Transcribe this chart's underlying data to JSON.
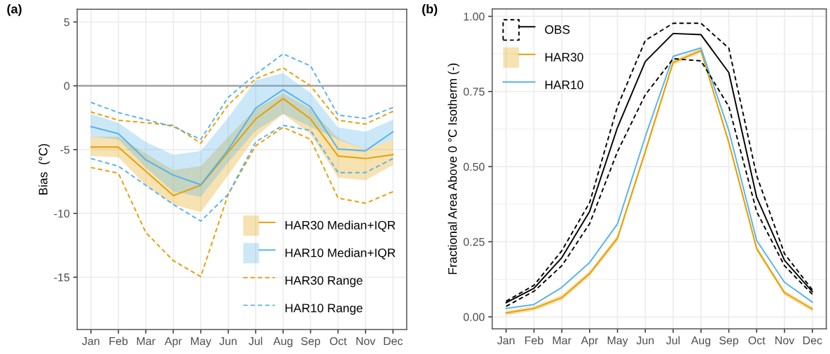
{
  "chart_data": [
    {
      "type": "line",
      "title": "(a)",
      "ylabel": "Bias  (°C)",
      "categories": [
        "Jan",
        "Feb",
        "Mar",
        "Apr",
        "May",
        "Jun",
        "Jul",
        "Aug",
        "Sep",
        "Oct",
        "Nov",
        "Dec"
      ],
      "ylim": [
        -19.1,
        6.0
      ],
      "yticks": [
        {
          "value": 5,
          "label": "5"
        },
        {
          "value": 0,
          "label": "0"
        },
        {
          "value": -5,
          "label": "-5"
        },
        {
          "value": -10,
          "label": "-10"
        },
        {
          "value": -15,
          "label": "-15"
        }
      ],
      "grid": true,
      "legend": "bottom right",
      "ref_lines": [
        {
          "axis": "y",
          "value": 0,
          "label": null,
          "color": "#999999"
        }
      ],
      "series": [
        {
          "name": "HAR30 Median+IQR",
          "color": "#e69f00",
          "values": [
            -4.8,
            -4.8,
            -6.7,
            -8.6,
            -7.8,
            -5.2,
            -2.6,
            -1.0,
            -2.6,
            -5.5,
            -5.7,
            -5.4
          ],
          "lower": [
            -5.5,
            -5.6,
            -7.8,
            -9.3,
            -9.9,
            -7.0,
            -4.0,
            -2.2,
            -3.8,
            -7.2,
            -7.4,
            -6.2
          ],
          "upper": [
            -4.0,
            -4.0,
            -5.3,
            -6.6,
            -6.3,
            -4.0,
            -1.8,
            -0.6,
            -1.8,
            -4.1,
            -5.0,
            -4.2
          ]
        },
        {
          "name": "HAR10 Median+IQR",
          "color": "#56b4e9",
          "values": [
            -3.2,
            -3.75,
            -5.8,
            -7.0,
            -7.75,
            -5.0,
            -1.75,
            -0.3,
            -1.65,
            -4.95,
            -5.1,
            -3.6
          ],
          "lower": [
            -4.0,
            -4.2,
            -6.4,
            -8.3,
            -8.7,
            -6.0,
            -3.5,
            -2.2,
            -3.2,
            -4.2,
            -5.0,
            -4.2
          ],
          "upper": [
            -2.2,
            -2.9,
            -4.4,
            -5.4,
            -5.1,
            -2.5,
            0.45,
            1.0,
            -0.55,
            -3.25,
            -3.6,
            -2.65
          ]
        },
        {
          "name": "HAR30 Range",
          "color": "#e69f00",
          "line_style": "dashed",
          "values": [
            -2.05,
            -2.7,
            -2.9,
            -3.1,
            -4.5,
            -1.5,
            0.55,
            1.4,
            0.0,
            -2.7,
            -3.0,
            -2.0
          ]
        },
        {
          "color": "#e69f00",
          "line_style": "dashed",
          "values": [
            -6.4,
            -6.85,
            -11.5,
            -13.7,
            -14.95,
            -8.5,
            -4.7,
            -3.25,
            -4.2,
            -8.8,
            -9.2,
            -8.3
          ]
        },
        {
          "name": "HAR10 Range",
          "color": "#56b4e9",
          "line_style": "dashed",
          "values": [
            -1.3,
            -2.1,
            -2.65,
            -3.2,
            -4.2,
            -0.9,
            0.9,
            2.5,
            1.55,
            -2.3,
            -2.55,
            -1.7
          ]
        },
        {
          "color": "#56b4e9",
          "line_style": "dashed",
          "values": [
            -5.7,
            -6.3,
            -7.8,
            -9.3,
            -10.6,
            -8.5,
            -4.4,
            -3.1,
            -3.5,
            -6.8,
            -6.8,
            -5.7
          ]
        }
      ]
    },
    {
      "type": "line",
      "title": "(b)",
      "ylabel": "Fractional Area Above 0 °C Isotherm (-)",
      "categories": [
        "Jan",
        "Feb",
        "Mar",
        "Apr",
        "May",
        "Jun",
        "Jul",
        "Aug",
        "Sep",
        "Oct",
        "Nov",
        "Dec"
      ],
      "ylim": [
        -0.04,
        1.025
      ],
      "yticks": [
        {
          "value": 0,
          "label": "0.00"
        },
        {
          "value": 0.125,
          "label": null
        },
        {
          "value": 0.25,
          "label": "0.25"
        },
        {
          "value": 0.375,
          "label": null
        },
        {
          "value": 0.5,
          "label": "0.50"
        },
        {
          "value": 0.625,
          "label": null
        },
        {
          "value": 0.75,
          "label": "0.75"
        },
        {
          "value": 0.875,
          "label": null
        },
        {
          "value": 1.0,
          "label": "1.00"
        }
      ],
      "grid": true,
      "legend": "top left",
      "series": [
        {
          "name": "OBS",
          "color": "#000000",
          "values": [
            0.047,
            0.095,
            0.197,
            0.351,
            0.63,
            0.85,
            0.943,
            0.939,
            0.813,
            0.398,
            0.188,
            0.084
          ]
        },
        {
          "color": "#000000",
          "line_style": "dashed",
          "values": [
            0.052,
            0.105,
            0.22,
            0.38,
            0.7,
            0.92,
            0.977,
            0.977,
            0.894,
            0.47,
            0.21,
            0.09
          ]
        },
        {
          "color": "#000000",
          "line_style": "dashed",
          "values": [
            0.035,
            0.085,
            0.17,
            0.31,
            0.55,
            0.739,
            0.859,
            0.852,
            0.7,
            0.35,
            0.17,
            0.075
          ]
        },
        {
          "name": "HAR30",
          "color": "#e69f00",
          "values": [
            0.013,
            0.028,
            0.064,
            0.144,
            0.262,
            0.55,
            0.847,
            0.886,
            0.58,
            0.227,
            0.08,
            0.026
          ],
          "lower": [
            0.005,
            0.02,
            0.055,
            0.135,
            0.252,
            0.54,
            0.838,
            0.878,
            0.57,
            0.218,
            0.072,
            0.018
          ],
          "upper": [
            0.02,
            0.036,
            0.073,
            0.153,
            0.272,
            0.56,
            0.856,
            0.894,
            0.59,
            0.236,
            0.088,
            0.034
          ]
        },
        {
          "name": "HAR10",
          "color": "#56b4e9",
          "values": [
            0.028,
            0.041,
            0.098,
            0.181,
            0.309,
            0.6,
            0.867,
            0.895,
            0.62,
            0.254,
            0.115,
            0.049
          ]
        }
      ]
    }
  ]
}
